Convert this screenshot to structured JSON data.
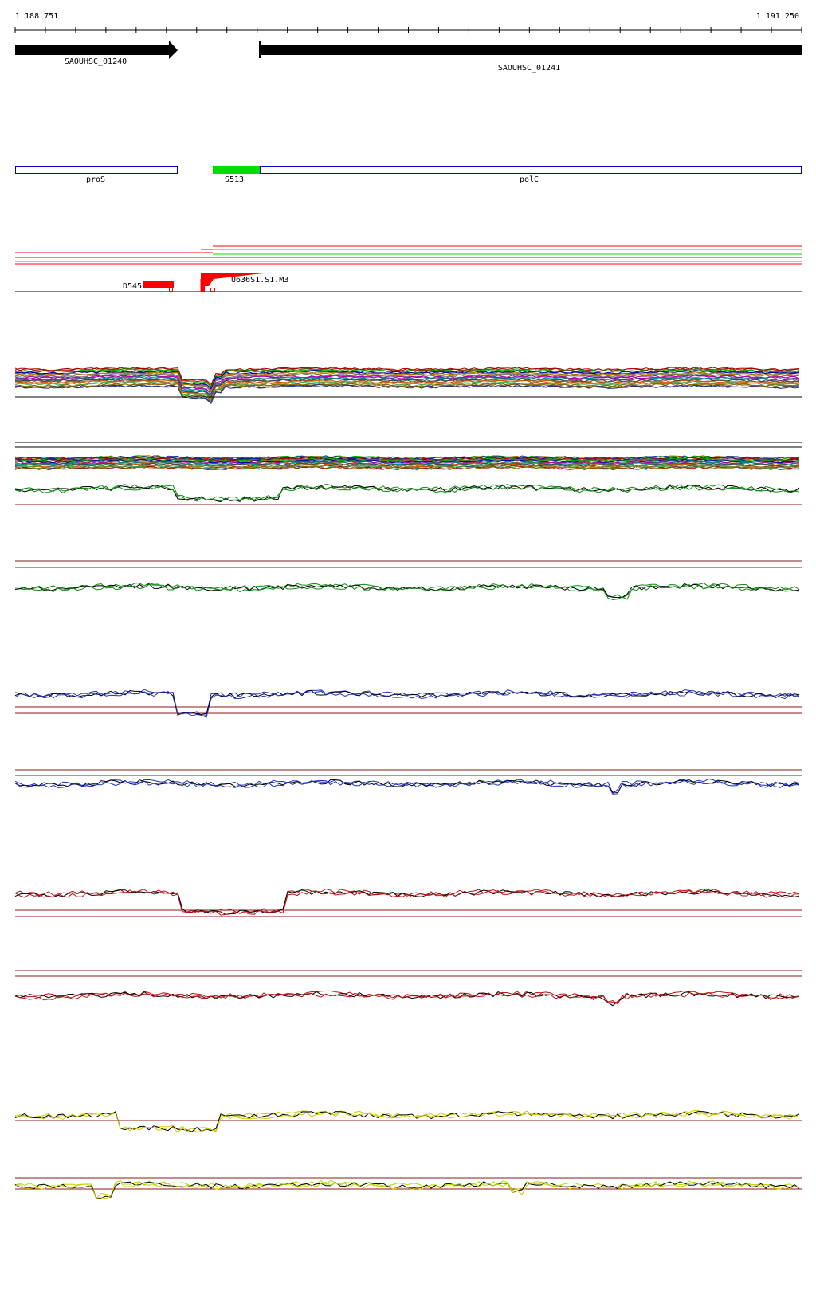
{
  "ruler": {
    "start_label": "1 188 751",
    "end_label": "1 191 250",
    "start": 1188751,
    "end": 1191250
  },
  "genes": [
    {
      "label": "SAOUHSC_01240",
      "start": 1188751,
      "end": 1189263,
      "strand": "+"
    },
    {
      "label": "SAOUHSC_01241",
      "start": 1189523,
      "end": 1191250,
      "strand": "+"
    }
  ],
  "annotations": [
    {
      "label": "proS",
      "start": 1188751,
      "end": 1189263,
      "style": "outline"
    },
    {
      "label": "S513",
      "start": 1189375,
      "end": 1189523,
      "style": "filled"
    },
    {
      "label": "polC",
      "start": 1189523,
      "end": 1191250,
      "style": "outline"
    }
  ],
  "features": {
    "d_label": "D545",
    "u_label": "U636",
    "u_overlap_label": "S1.S1.M3",
    "overlap_prefix": "U6",
    "u_overlap_full": "U636S1.S1.M3"
  },
  "colors": {
    "green": "#00dd00",
    "blue_outline": "#0000cc",
    "red": "#ff0000",
    "guide": "#8b1a1a",
    "black": "#000000",
    "panel_green": "#118811",
    "panel_blue": "#2233bb",
    "panel_red": "#bb1111",
    "panel_yellow": "#cccc00"
  },
  "panels": [
    {
      "name": "profile-panel-green-1",
      "color": "panel_green"
    },
    {
      "name": "profile-panel-green-2",
      "color": "panel_green"
    },
    {
      "name": "profile-panel-blue-1",
      "color": "panel_blue"
    },
    {
      "name": "profile-panel-blue-2",
      "color": "panel_blue"
    },
    {
      "name": "profile-panel-red-1",
      "color": "panel_red"
    },
    {
      "name": "profile-panel-red-2",
      "color": "panel_red"
    },
    {
      "name": "profile-panel-yellow-1",
      "color": "panel_yellow"
    },
    {
      "name": "profile-panel-yellow-2",
      "color": "panel_yellow"
    }
  ]
}
